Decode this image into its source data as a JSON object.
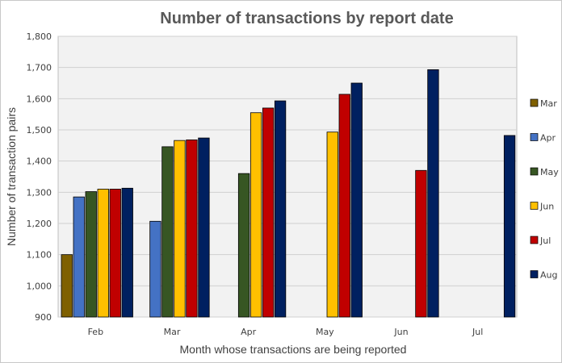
{
  "chart_data": {
    "type": "bar",
    "title": "Number of transactions by report date",
    "xlabel": "Month whose transactions are being reported",
    "ylabel": "Number of transaction pairs",
    "ylim": [
      900,
      1800
    ],
    "yticks": [
      900,
      1000,
      1100,
      1200,
      1300,
      1400,
      1500,
      1600,
      1700,
      1800
    ],
    "ytick_labels": [
      "900",
      "1,000",
      "1,100",
      "1,200",
      "1,300",
      "1,400",
      "1,500",
      "1,600",
      "1,700",
      "1,800"
    ],
    "categories": [
      "Feb",
      "Mar",
      "Apr",
      "May",
      "Jun",
      "Jul"
    ],
    "grid": true,
    "legend_position": "right",
    "series": [
      {
        "name": "Mar",
        "color": "#7f6000",
        "values": [
          1100,
          null,
          null,
          null,
          null,
          null
        ]
      },
      {
        "name": "Apr",
        "color": "#4472c4",
        "values": [
          1285,
          1207,
          null,
          null,
          null,
          null
        ]
      },
      {
        "name": "May",
        "color": "#375623",
        "values": [
          1302,
          1446,
          1360,
          null,
          null,
          null
        ]
      },
      {
        "name": "Jun",
        "color": "#ffc000",
        "values": [
          1310,
          1466,
          1555,
          1493,
          null,
          null
        ]
      },
      {
        "name": "Jul",
        "color": "#c00000",
        "values": [
          1310,
          1468,
          1570,
          1614,
          1370,
          null
        ]
      },
      {
        "name": "Aug",
        "color": "#002060",
        "values": [
          1313,
          1474,
          1593,
          1650,
          1693,
          1482
        ]
      }
    ]
  }
}
